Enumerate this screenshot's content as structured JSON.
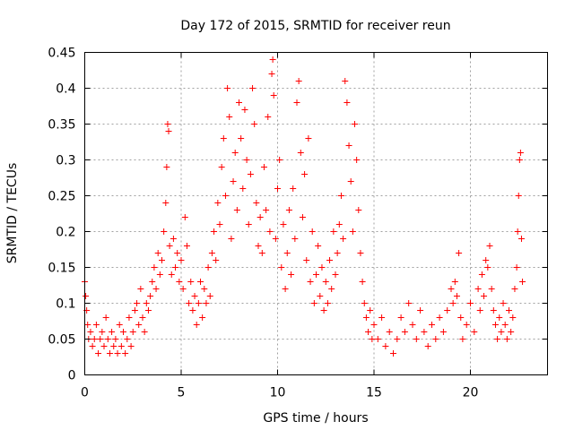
{
  "chart_data": {
    "type": "scatter",
    "title": "Day 172 of 2015, SRMTID for receiver reun",
    "xlabel": "GPS time / hours",
    "ylabel": "SRMTID / TECUs",
    "xlim": [
      0,
      24
    ],
    "ylim": [
      0,
      0.45
    ],
    "xticks": [
      0,
      5,
      10,
      15,
      20
    ],
    "xtick_labels": [
      "0",
      "5",
      "10",
      "15",
      "20"
    ],
    "yticks": [
      0,
      0.05,
      0.1,
      0.15,
      0.2,
      0.25,
      0.3,
      0.35,
      0.4,
      0.45
    ],
    "ytick_labels": [
      "0",
      "0.05",
      "0.1",
      "0.15",
      "0.2",
      "0.25",
      "0.3",
      "0.35",
      "0.4",
      "0.45"
    ],
    "grid": true,
    "marker": "+",
    "color": "#ff0000",
    "series": [
      {
        "name": "SRMTID",
        "points": [
          [
            0.0,
            0.13
          ],
          [
            0.05,
            0.11
          ],
          [
            0.1,
            0.09
          ],
          [
            0.15,
            0.07
          ],
          [
            0.2,
            0.05
          ],
          [
            0.3,
            0.06
          ],
          [
            0.4,
            0.04
          ],
          [
            0.5,
            0.05
          ],
          [
            0.6,
            0.07
          ],
          [
            0.7,
            0.03
          ],
          [
            0.8,
            0.05
          ],
          [
            0.9,
            0.06
          ],
          [
            1.0,
            0.04
          ],
          [
            1.1,
            0.08
          ],
          [
            1.2,
            0.05
          ],
          [
            1.3,
            0.03
          ],
          [
            1.4,
            0.06
          ],
          [
            1.5,
            0.04
          ],
          [
            1.6,
            0.05
          ],
          [
            1.7,
            0.03
          ],
          [
            1.8,
            0.07
          ],
          [
            1.9,
            0.04
          ],
          [
            2.0,
            0.06
          ],
          [
            2.1,
            0.03
          ],
          [
            2.2,
            0.05
          ],
          [
            2.3,
            0.08
          ],
          [
            2.4,
            0.04
          ],
          [
            2.5,
            0.06
          ],
          [
            2.6,
            0.09
          ],
          [
            2.7,
            0.1
          ],
          [
            2.8,
            0.07
          ],
          [
            2.9,
            0.12
          ],
          [
            3.0,
            0.08
          ],
          [
            3.1,
            0.06
          ],
          [
            3.2,
            0.1
          ],
          [
            3.3,
            0.09
          ],
          [
            3.4,
            0.11
          ],
          [
            3.5,
            0.13
          ],
          [
            3.6,
            0.15
          ],
          [
            3.7,
            0.12
          ],
          [
            3.8,
            0.17
          ],
          [
            3.9,
            0.14
          ],
          [
            4.0,
            0.16
          ],
          [
            4.1,
            0.2
          ],
          [
            4.2,
            0.24
          ],
          [
            4.25,
            0.29
          ],
          [
            4.3,
            0.35
          ],
          [
            4.35,
            0.34
          ],
          [
            4.4,
            0.18
          ],
          [
            4.5,
            0.14
          ],
          [
            4.6,
            0.19
          ],
          [
            4.7,
            0.15
          ],
          [
            4.8,
            0.17
          ],
          [
            4.9,
            0.13
          ],
          [
            5.0,
            0.16
          ],
          [
            5.1,
            0.12
          ],
          [
            5.2,
            0.22
          ],
          [
            5.3,
            0.18
          ],
          [
            5.4,
            0.1
          ],
          [
            5.5,
            0.13
          ],
          [
            5.6,
            0.09
          ],
          [
            5.7,
            0.11
          ],
          [
            5.8,
            0.07
          ],
          [
            5.9,
            0.1
          ],
          [
            6.0,
            0.13
          ],
          [
            6.1,
            0.08
          ],
          [
            6.2,
            0.12
          ],
          [
            6.3,
            0.1
          ],
          [
            6.4,
            0.15
          ],
          [
            6.5,
            0.11
          ],
          [
            6.6,
            0.17
          ],
          [
            6.7,
            0.2
          ],
          [
            6.8,
            0.16
          ],
          [
            6.9,
            0.24
          ],
          [
            7.0,
            0.21
          ],
          [
            7.1,
            0.29
          ],
          [
            7.2,
            0.33
          ],
          [
            7.3,
            0.25
          ],
          [
            7.4,
            0.4
          ],
          [
            7.5,
            0.36
          ],
          [
            7.6,
            0.19
          ],
          [
            7.7,
            0.27
          ],
          [
            7.8,
            0.31
          ],
          [
            7.9,
            0.23
          ],
          [
            8.0,
            0.38
          ],
          [
            8.1,
            0.33
          ],
          [
            8.2,
            0.26
          ],
          [
            8.3,
            0.37
          ],
          [
            8.4,
            0.3
          ],
          [
            8.5,
            0.21
          ],
          [
            8.6,
            0.28
          ],
          [
            8.7,
            0.4
          ],
          [
            8.8,
            0.35
          ],
          [
            8.9,
            0.24
          ],
          [
            9.0,
            0.18
          ],
          [
            9.1,
            0.22
          ],
          [
            9.2,
            0.17
          ],
          [
            9.3,
            0.29
          ],
          [
            9.4,
            0.23
          ],
          [
            9.5,
            0.36
          ],
          [
            9.6,
            0.2
          ],
          [
            9.7,
            0.42
          ],
          [
            9.75,
            0.44
          ],
          [
            9.8,
            0.39
          ],
          [
            9.9,
            0.19
          ],
          [
            10.0,
            0.26
          ],
          [
            10.1,
            0.3
          ],
          [
            10.2,
            0.15
          ],
          [
            10.3,
            0.21
          ],
          [
            10.4,
            0.12
          ],
          [
            10.5,
            0.17
          ],
          [
            10.6,
            0.23
          ],
          [
            10.7,
            0.14
          ],
          [
            10.8,
            0.26
          ],
          [
            10.9,
            0.19
          ],
          [
            11.0,
            0.38
          ],
          [
            11.1,
            0.41
          ],
          [
            11.2,
            0.31
          ],
          [
            11.3,
            0.22
          ],
          [
            11.4,
            0.28
          ],
          [
            11.5,
            0.16
          ],
          [
            11.6,
            0.33
          ],
          [
            11.7,
            0.13
          ],
          [
            11.8,
            0.2
          ],
          [
            11.9,
            0.1
          ],
          [
            12.0,
            0.14
          ],
          [
            12.1,
            0.18
          ],
          [
            12.2,
            0.11
          ],
          [
            12.3,
            0.15
          ],
          [
            12.4,
            0.09
          ],
          [
            12.5,
            0.13
          ],
          [
            12.6,
            0.1
          ],
          [
            12.7,
            0.16
          ],
          [
            12.8,
            0.12
          ],
          [
            12.9,
            0.2
          ],
          [
            13.0,
            0.14
          ],
          [
            13.1,
            0.17
          ],
          [
            13.2,
            0.21
          ],
          [
            13.3,
            0.25
          ],
          [
            13.4,
            0.19
          ],
          [
            13.5,
            0.41
          ],
          [
            13.6,
            0.38
          ],
          [
            13.7,
            0.32
          ],
          [
            13.8,
            0.27
          ],
          [
            13.9,
            0.2
          ],
          [
            14.0,
            0.35
          ],
          [
            14.1,
            0.3
          ],
          [
            14.2,
            0.23
          ],
          [
            14.3,
            0.17
          ],
          [
            14.4,
            0.13
          ],
          [
            14.5,
            0.1
          ],
          [
            14.6,
            0.08
          ],
          [
            14.7,
            0.06
          ],
          [
            14.8,
            0.09
          ],
          [
            14.9,
            0.05
          ],
          [
            15.0,
            0.07
          ],
          [
            15.2,
            0.05
          ],
          [
            15.4,
            0.08
          ],
          [
            15.6,
            0.04
          ],
          [
            15.8,
            0.06
          ],
          [
            16.0,
            0.03
          ],
          [
            16.2,
            0.05
          ],
          [
            16.4,
            0.08
          ],
          [
            16.6,
            0.06
          ],
          [
            16.8,
            0.1
          ],
          [
            17.0,
            0.07
          ],
          [
            17.2,
            0.05
          ],
          [
            17.4,
            0.09
          ],
          [
            17.6,
            0.06
          ],
          [
            17.8,
            0.04
          ],
          [
            18.0,
            0.07
          ],
          [
            18.2,
            0.05
          ],
          [
            18.4,
            0.08
          ],
          [
            18.6,
            0.06
          ],
          [
            18.8,
            0.09
          ],
          [
            19.0,
            0.12
          ],
          [
            19.1,
            0.1
          ],
          [
            19.2,
            0.13
          ],
          [
            19.3,
            0.11
          ],
          [
            19.4,
            0.17
          ],
          [
            19.5,
            0.08
          ],
          [
            19.6,
            0.05
          ],
          [
            19.8,
            0.07
          ],
          [
            20.0,
            0.1
          ],
          [
            20.2,
            0.06
          ],
          [
            20.4,
            0.12
          ],
          [
            20.5,
            0.09
          ],
          [
            20.6,
            0.14
          ],
          [
            20.7,
            0.11
          ],
          [
            20.8,
            0.16
          ],
          [
            20.9,
            0.15
          ],
          [
            21.0,
            0.18
          ],
          [
            21.1,
            0.12
          ],
          [
            21.2,
            0.09
          ],
          [
            21.3,
            0.07
          ],
          [
            21.4,
            0.05
          ],
          [
            21.5,
            0.08
          ],
          [
            21.6,
            0.06
          ],
          [
            21.7,
            0.1
          ],
          [
            21.8,
            0.07
          ],
          [
            21.9,
            0.05
          ],
          [
            22.0,
            0.09
          ],
          [
            22.1,
            0.06
          ],
          [
            22.2,
            0.08
          ],
          [
            22.3,
            0.12
          ],
          [
            22.4,
            0.15
          ],
          [
            22.45,
            0.2
          ],
          [
            22.5,
            0.25
          ],
          [
            22.55,
            0.3
          ],
          [
            22.6,
            0.31
          ],
          [
            22.65,
            0.19
          ],
          [
            22.7,
            0.13
          ]
        ]
      }
    ]
  }
}
